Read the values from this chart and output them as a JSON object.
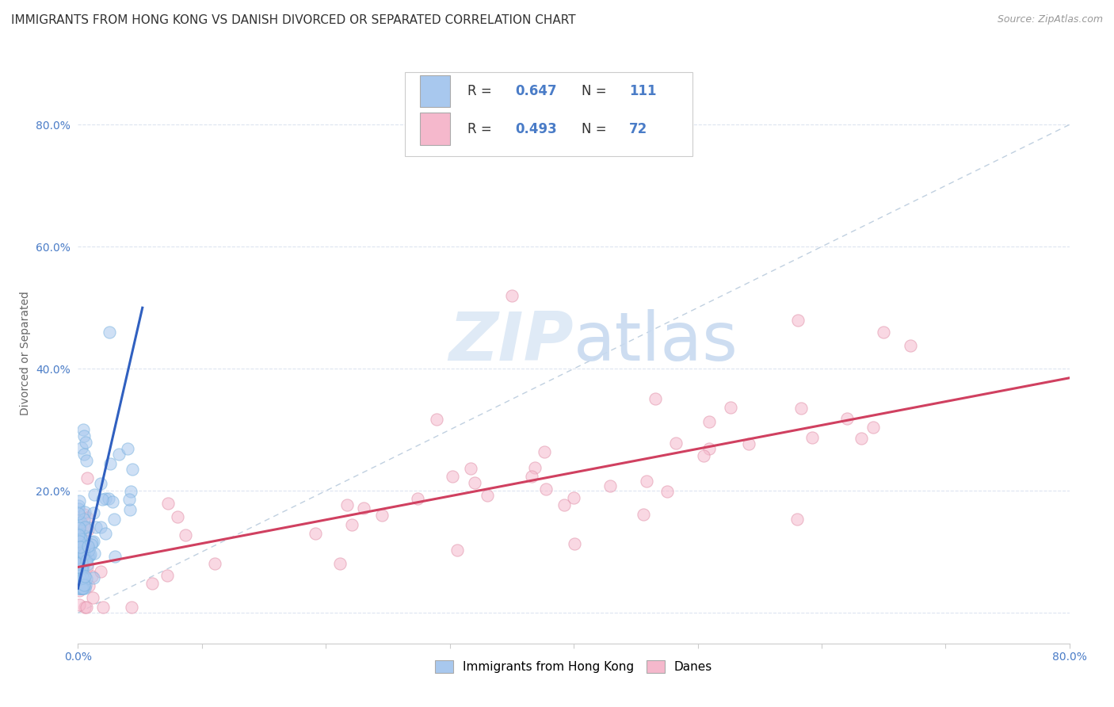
{
  "title": "IMMIGRANTS FROM HONG KONG VS DANISH DIVORCED OR SEPARATED CORRELATION CHART",
  "source": "Source: ZipAtlas.com",
  "ylabel": "Divorced or Separated",
  "xmin": 0.0,
  "xmax": 0.8,
  "ymin": -0.05,
  "ymax": 0.9,
  "hk_color": "#a8c8ee",
  "hk_edge_color": "#7ab3e0",
  "hk_line_color": "#3060c0",
  "danes_color": "#f5b8cc",
  "danes_edge_color": "#e090a8",
  "danes_line_color": "#d04060",
  "diag_line_color": "#c0d0e0",
  "watermark_color": "#dce8f5",
  "background_color": "#ffffff",
  "grid_color": "#dde4f0",
  "tick_color": "#4a7cc7",
  "title_fontsize": 11,
  "label_fontsize": 10,
  "tick_fontsize": 10,
  "source_fontsize": 9,
  "marker_size": 120,
  "marker_alpha": 0.55
}
